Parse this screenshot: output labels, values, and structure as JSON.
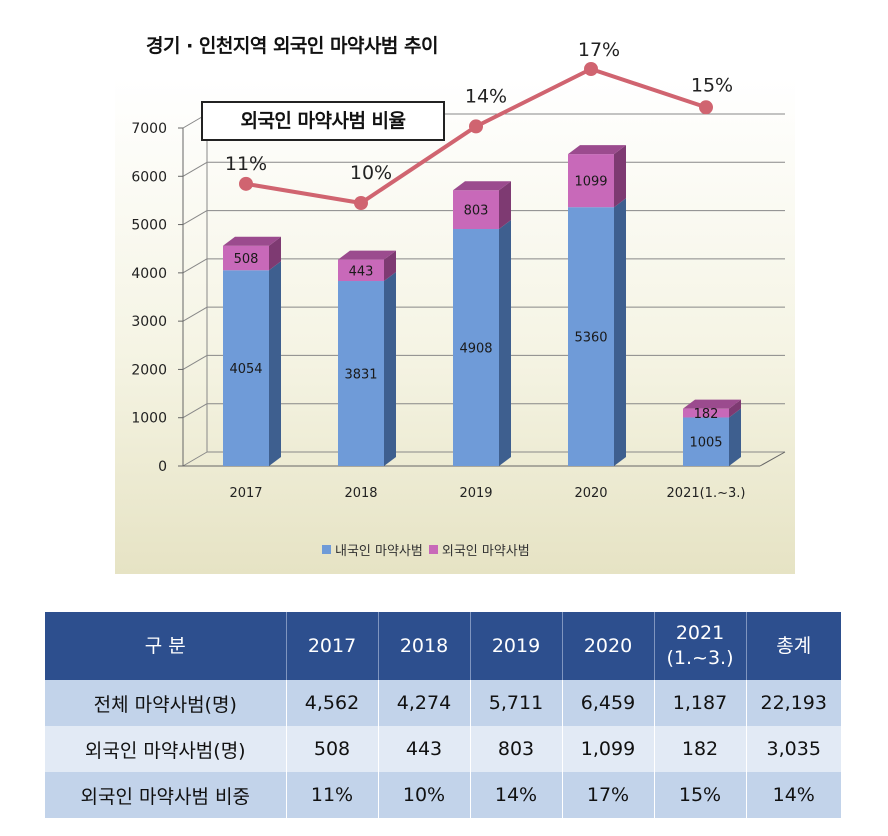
{
  "chart_data": {
    "type": "bar",
    "stacked": true,
    "title": "경기 · 인천지역 외국인 마약사범 추이",
    "categories": [
      "2017",
      "2018",
      "2019",
      "2020",
      "2021(1.~3.)"
    ],
    "series": [
      {
        "name": "내국인 마약사범",
        "values": [
          4054,
          3831,
          4908,
          5360,
          1005
        ],
        "color": "#6f9bd8"
      },
      {
        "name": "외국인 마약사범",
        "values": [
          508,
          443,
          803,
          1099,
          182
        ],
        "color": "#c869b9"
      }
    ],
    "ratio_series": {
      "name": "외국인 마약사범 비율",
      "values": [
        11,
        10,
        14,
        17,
        15
      ],
      "labels": [
        "11%",
        "10%",
        "14%",
        "17%",
        "15%"
      ],
      "color": "#d06470"
    },
    "yticks": [
      "0",
      "1000",
      "2000",
      "3000",
      "4000",
      "5000",
      "6000",
      "7000"
    ],
    "ylim": [
      0,
      7000
    ],
    "grid": true,
    "legend_position": "bottom"
  },
  "table": {
    "headers": [
      "구 분",
      "2017",
      "2018",
      "2019",
      "2020",
      "2021",
      "총계"
    ],
    "header_sub": "(1.~3.)",
    "rows": [
      {
        "label": "전체 마약사범(명)",
        "cells": [
          "4,562",
          "4,274",
          "5,711",
          "6,459",
          "1,187",
          "22,193"
        ]
      },
      {
        "label": "외국인 마약사범(명)",
        "cells": [
          "508",
          "443",
          "803",
          "1,099",
          "182",
          "3,035"
        ]
      },
      {
        "label": "외국인 마약사범 비중",
        "cells": [
          "11%",
          "10%",
          "14%",
          "17%",
          "15%",
          "14%"
        ]
      }
    ]
  }
}
